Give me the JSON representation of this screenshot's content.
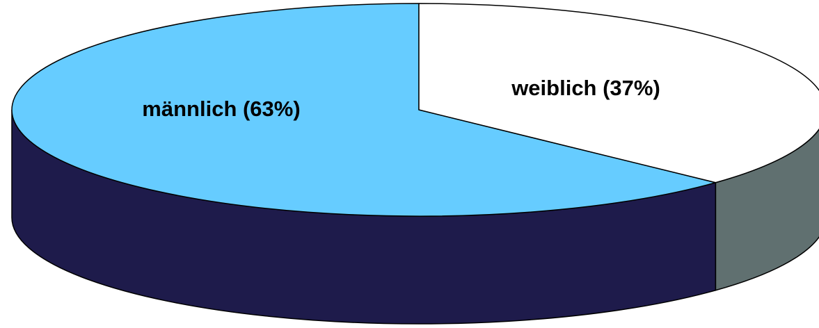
{
  "chart_data": {
    "type": "pie",
    "style": "3d",
    "slices": [
      {
        "label": "männlich (63%)",
        "value": 63,
        "top_color": "#66CCFF",
        "side_color": "#1E1B4B"
      },
      {
        "label": "weiblich (37%)",
        "value": 37,
        "top_color": "#FFFFFF",
        "side_color": "#607070"
      }
    ]
  }
}
